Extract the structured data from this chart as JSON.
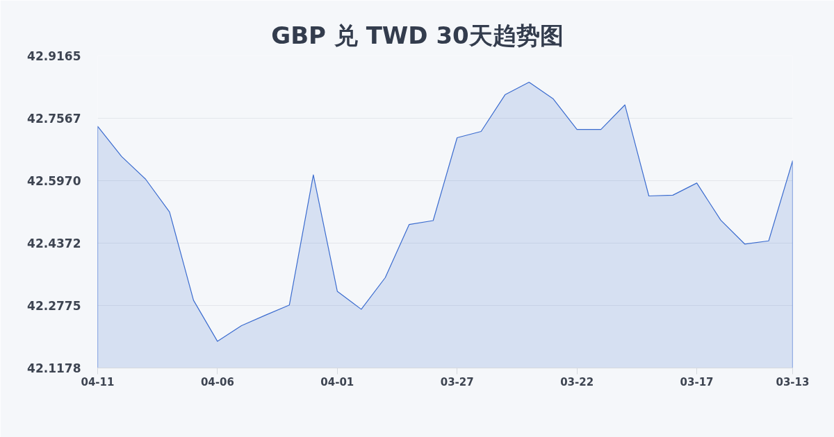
{
  "chart_data": {
    "type": "area",
    "title": "GBP 兑 TWD 30天趋势图",
    "categories": [
      "04-11",
      null,
      null,
      null,
      null,
      "04-06",
      null,
      null,
      null,
      null,
      "04-01",
      null,
      null,
      null,
      null,
      "03-27",
      null,
      null,
      null,
      null,
      "03-22",
      null,
      null,
      null,
      null,
      "03-17",
      null,
      null,
      null,
      "03-13"
    ],
    "series": [
      {
        "color": "#3a6bcf",
        "values": [
          42.736,
          42.659,
          42.601,
          42.517,
          42.291,
          42.186,
          42.226,
          42.253,
          42.279,
          42.612,
          42.314,
          42.268,
          42.349,
          42.485,
          42.495,
          42.707,
          42.723,
          42.817,
          42.849,
          42.807,
          42.728,
          42.728,
          42.791,
          42.558,
          42.56,
          42.591,
          42.496,
          42.435,
          42.443,
          42.648
        ]
      }
    ],
    "ylim": [
      42.1178,
      42.9165
    ],
    "yticks": [
      42.1178,
      42.2775,
      42.4372,
      {
        "value": 42.597,
        "label": "42.5970"
      },
      42.7567,
      42.9165
    ],
    "grid": "y"
  }
}
